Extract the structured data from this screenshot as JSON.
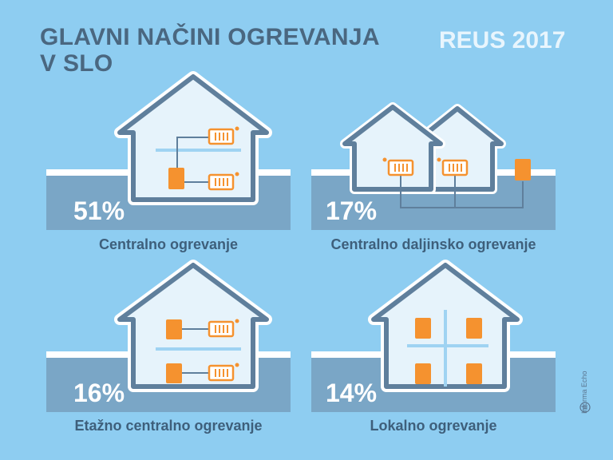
{
  "header": {
    "title_line1": "GLAVNI NAČINI OGREVANJA",
    "title_line2": "V SLO",
    "year_label": "REUS 2017"
  },
  "panels": [
    {
      "percent": "51%",
      "label": "Centralno ogrevanje"
    },
    {
      "percent": "17%",
      "label": "Centralno daljinsko ogrevanje"
    },
    {
      "percent": "16%",
      "label": "Etažno centralno ogrevanje"
    },
    {
      "percent": "14%",
      "label": "Lokalno ogrevanje"
    }
  ],
  "credit": "Informa Echo",
  "colors": {
    "background": "#8ecdf1",
    "house_fill": "#e6f3fb",
    "house_outline": "#5f7f9c",
    "ground": "#7aa6c6",
    "boiler": "#f5922f",
    "radiator_outline": "#f5922f",
    "text_dark": "#3e5f7b"
  }
}
